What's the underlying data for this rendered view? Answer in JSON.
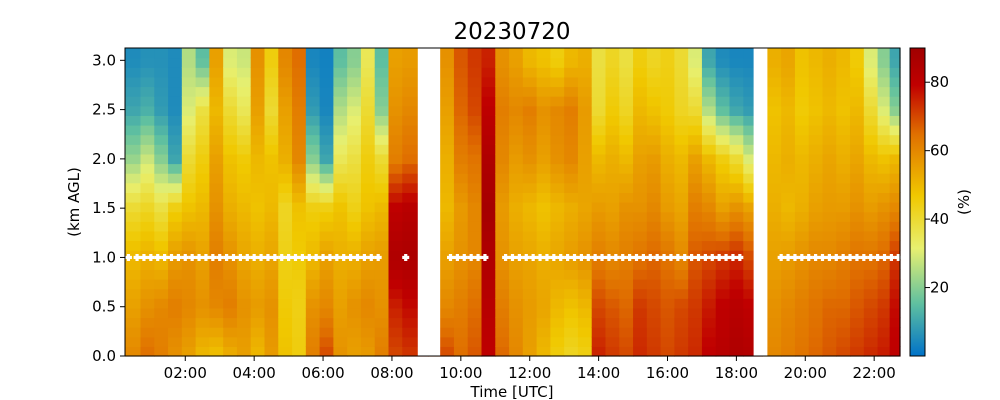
{
  "chart_data": {
    "type": "heatmap",
    "title": "20230720",
    "xlabel": "Time [UTC]",
    "ylabel": "(km AGL)",
    "colorbar_label": "(%)",
    "xlim_hours": [
      0.25,
      22.75
    ],
    "ylim": [
      0.0,
      3.125
    ],
    "x_tick_labels": [
      "02:00",
      "04:00",
      "06:00",
      "08:00",
      "10:00",
      "12:00",
      "14:00",
      "16:00",
      "18:00",
      "20:00",
      "22:00"
    ],
    "x_tick_hours": [
      2,
      4,
      6,
      8,
      10,
      12,
      14,
      16,
      18,
      20,
      22
    ],
    "y_tick_labels": [
      "0.0",
      "0.5",
      "1.0",
      "1.5",
      "2.0",
      "2.5",
      "3.0"
    ],
    "y_ticks": [
      0.0,
      0.5,
      1.0,
      1.5,
      2.0,
      2.5,
      3.0
    ],
    "colorbar_tick_labels": [
      "20",
      "40",
      "60",
      "80"
    ],
    "colorbar_ticks": [
      20,
      40,
      60,
      80
    ],
    "colorbar_range": [
      0,
      90
    ],
    "colormap": [
      "#0072c8",
      "#5fc0a0",
      "#e8f070",
      "#f0c800",
      "#e07000",
      "#c00000",
      "#a00000"
    ],
    "missing_intervals_hours": [
      [
        8.75,
        9.4
      ],
      [
        18.5,
        18.9
      ]
    ],
    "columns": [
      {
        "t": 0.5,
        "profile": [
          60,
          55,
          50,
          40,
          22,
          10,
          5
        ]
      },
      {
        "t": 0.9,
        "profile": [
          65,
          58,
          52,
          42,
          28,
          12,
          6
        ]
      },
      {
        "t": 1.3,
        "profile": [
          62,
          60,
          50,
          38,
          20,
          8,
          6
        ]
      },
      {
        "t": 1.7,
        "profile": [
          58,
          62,
          56,
          45,
          10,
          5,
          5
        ]
      },
      {
        "t": 2.1,
        "profile": [
          55,
          60,
          58,
          48,
          40,
          30,
          25
        ]
      },
      {
        "t": 2.5,
        "profile": [
          50,
          58,
          55,
          50,
          45,
          38,
          15
        ]
      },
      {
        "t": 2.9,
        "profile": [
          48,
          60,
          62,
          58,
          55,
          50,
          55
        ]
      },
      {
        "t": 3.3,
        "profile": [
          52,
          62,
          58,
          52,
          48,
          40,
          30
        ]
      },
      {
        "t": 3.7,
        "profile": [
          55,
          58,
          54,
          50,
          46,
          35,
          28
        ]
      },
      {
        "t": 4.1,
        "profile": [
          50,
          56,
          52,
          48,
          50,
          55,
          58
        ]
      },
      {
        "t": 4.5,
        "profile": [
          56,
          58,
          54,
          50,
          48,
          40,
          45
        ]
      },
      {
        "t": 4.9,
        "profile": [
          48,
          46,
          44,
          42,
          52,
          55,
          60
        ]
      },
      {
        "t": 5.3,
        "profile": [
          45,
          44,
          46,
          48,
          60,
          62,
          65
        ]
      },
      {
        "t": 5.7,
        "profile": [
          62,
          58,
          50,
          45,
          20,
          8,
          4
        ]
      },
      {
        "t": 6.1,
        "profile": [
          70,
          60,
          55,
          45,
          10,
          4,
          3
        ]
      },
      {
        "t": 6.5,
        "profile": [
          58,
          55,
          52,
          48,
          35,
          25,
          15
        ]
      },
      {
        "t": 6.9,
        "profile": [
          55,
          58,
          52,
          44,
          38,
          30,
          20
        ]
      },
      {
        "t": 7.3,
        "profile": [
          56,
          60,
          55,
          48,
          45,
          40,
          35
        ]
      },
      {
        "t": 7.7,
        "profile": [
          62,
          58,
          56,
          50,
          40,
          20,
          15
        ]
      },
      {
        "t": 8.1,
        "profile": [
          70,
          75,
          85,
          80,
          62,
          58,
          55
        ]
      },
      {
        "t": 8.5,
        "profile": [
          72,
          78,
          86,
          82,
          65,
          60,
          56
        ]
      },
      {
        "t": 9.6,
        "profile": [
          70,
          60,
          55,
          50,
          52,
          55,
          58
        ]
      },
      {
        "t": 10.0,
        "profile": [
          65,
          62,
          58,
          56,
          62,
          66,
          68
        ]
      },
      {
        "t": 10.4,
        "profile": [
          68,
          65,
          60,
          60,
          64,
          70,
          72
        ]
      },
      {
        "t": 10.8,
        "profile": [
          80,
          82,
          85,
          88,
          85,
          80,
          75
        ]
      },
      {
        "t": 11.2,
        "profile": [
          66,
          62,
          58,
          56,
          60,
          62,
          58
        ]
      },
      {
        "t": 11.6,
        "profile": [
          60,
          58,
          55,
          52,
          56,
          60,
          55
        ]
      },
      {
        "t": 12.0,
        "profile": [
          55,
          56,
          54,
          50,
          58,
          62,
          50
        ]
      },
      {
        "t": 12.4,
        "profile": [
          50,
          54,
          52,
          48,
          55,
          58,
          48
        ]
      },
      {
        "t": 12.8,
        "profile": [
          45,
          50,
          54,
          50,
          58,
          60,
          45
        ]
      },
      {
        "t": 13.2,
        "profile": [
          42,
          48,
          56,
          52,
          60,
          62,
          50
        ]
      },
      {
        "t": 13.6,
        "profile": [
          44,
          50,
          58,
          54,
          55,
          56,
          52
        ]
      },
      {
        "t": 14.0,
        "profile": [
          75,
          70,
          62,
          56,
          50,
          40,
          38
        ]
      },
      {
        "t": 14.4,
        "profile": [
          72,
          68,
          60,
          55,
          52,
          46,
          42
        ]
      },
      {
        "t": 14.8,
        "profile": [
          70,
          66,
          62,
          58,
          50,
          42,
          38
        ]
      },
      {
        "t": 15.2,
        "profile": [
          74,
          72,
          64,
          58,
          55,
          50,
          45
        ]
      },
      {
        "t": 15.6,
        "profile": [
          72,
          70,
          66,
          60,
          56,
          48,
          42
        ]
      },
      {
        "t": 16.0,
        "profile": [
          70,
          68,
          64,
          56,
          52,
          46,
          44
        ]
      },
      {
        "t": 16.4,
        "profile": [
          72,
          70,
          60,
          54,
          50,
          42,
          40
        ]
      },
      {
        "t": 16.8,
        "profile": [
          74,
          72,
          68,
          62,
          55,
          40,
          30
        ]
      },
      {
        "t": 17.2,
        "profile": [
          80,
          76,
          70,
          60,
          50,
          25,
          10
        ]
      },
      {
        "t": 17.6,
        "profile": [
          82,
          80,
          72,
          55,
          45,
          15,
          5
        ]
      },
      {
        "t": 18.0,
        "profile": [
          85,
          82,
          74,
          58,
          40,
          10,
          4
        ]
      },
      {
        "t": 18.4,
        "profile": [
          84,
          80,
          70,
          55,
          30,
          8,
          4
        ]
      },
      {
        "t": 19.1,
        "profile": [
          60,
          58,
          55,
          52,
          50,
          48,
          52
        ]
      },
      {
        "t": 19.5,
        "profile": [
          62,
          60,
          56,
          50,
          52,
          50,
          54
        ]
      },
      {
        "t": 19.9,
        "profile": [
          64,
          62,
          58,
          52,
          50,
          46,
          48
        ]
      },
      {
        "t": 20.3,
        "profile": [
          66,
          64,
          60,
          55,
          52,
          48,
          50
        ]
      },
      {
        "t": 20.7,
        "profile": [
          68,
          66,
          60,
          56,
          54,
          50,
          52
        ]
      },
      {
        "t": 21.1,
        "profile": [
          70,
          66,
          62,
          56,
          52,
          48,
          50
        ]
      },
      {
        "t": 21.5,
        "profile": [
          72,
          68,
          64,
          58,
          54,
          50,
          46
        ]
      },
      {
        "t": 21.9,
        "profile": [
          74,
          70,
          64,
          56,
          50,
          40,
          30
        ]
      },
      {
        "t": 22.3,
        "profile": [
          76,
          72,
          66,
          58,
          48,
          30,
          20
        ]
      },
      {
        "t": 22.6,
        "profile": [
          80,
          78,
          72,
          60,
          50,
          20,
          10
        ]
      }
    ],
    "profile_heights_km": [
      0.0,
      0.5,
      1.0,
      1.5,
      2.0,
      2.5,
      3.0
    ],
    "marker_height_km": 1.0,
    "marker_hours": [
      0.35,
      0.6,
      0.8,
      1.0,
      1.2,
      1.4,
      1.6,
      1.8,
      2.0,
      2.2,
      2.4,
      2.6,
      2.8,
      3.0,
      3.2,
      3.4,
      3.6,
      3.8,
      4.0,
      4.2,
      4.4,
      4.6,
      4.8,
      5.0,
      5.2,
      5.4,
      5.6,
      5.8,
      6.0,
      6.2,
      6.4,
      6.6,
      6.8,
      7.0,
      7.2,
      7.4,
      7.6,
      8.4,
      9.7,
      9.9,
      10.1,
      10.3,
      10.5,
      10.7,
      11.3,
      11.5,
      11.7,
      11.9,
      12.1,
      12.3,
      12.5,
      12.7,
      12.9,
      13.1,
      13.3,
      13.5,
      13.7,
      13.9,
      14.1,
      14.3,
      14.5,
      14.7,
      14.9,
      15.1,
      15.3,
      15.5,
      15.7,
      15.9,
      16.1,
      16.3,
      16.5,
      16.7,
      16.9,
      17.1,
      17.3,
      17.5,
      17.7,
      17.9,
      18.1,
      19.3,
      19.5,
      19.7,
      19.9,
      20.1,
      20.3,
      20.5,
      20.7,
      20.9,
      21.1,
      21.3,
      21.5,
      21.7,
      21.9,
      22.1,
      22.3,
      22.5,
      22.7
    ]
  }
}
